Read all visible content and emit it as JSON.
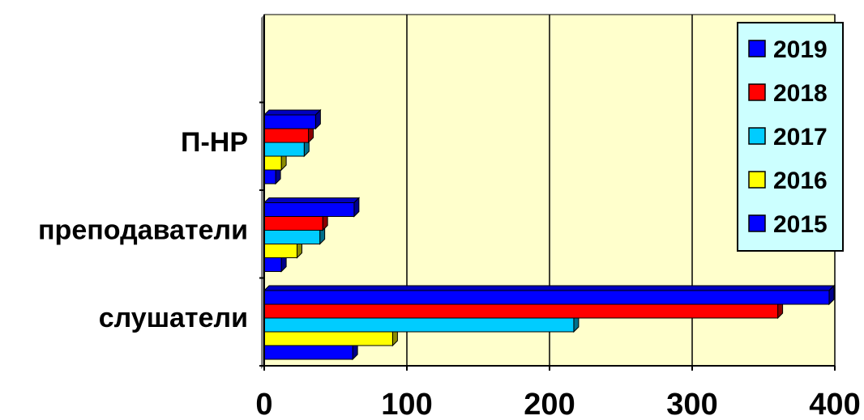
{
  "chart_data": {
    "type": "bar",
    "orientation": "horizontal",
    "title": "",
    "xlabel": "",
    "ylabel": "",
    "categories": [
      "слушатели",
      "преподаватели",
      "П-НР"
    ],
    "x_ticks": [
      "0",
      "100",
      "200",
      "300",
      "400"
    ],
    "xlim": [
      0,
      400
    ],
    "grid": "vertical",
    "legend_position": "right-top",
    "series": [
      {
        "name": "2015",
        "color": "#0000FF",
        "values": [
          62,
          12,
          8
        ]
      },
      {
        "name": "2016",
        "color": "#FFFF00",
        "values": [
          90,
          23,
          12
        ]
      },
      {
        "name": "2017",
        "color": "#00CCFF",
        "values": [
          217,
          39,
          28
        ]
      },
      {
        "name": "2018",
        "color": "#FF0000",
        "values": [
          360,
          41,
          31
        ]
      },
      {
        "name": "2019",
        "color": "#0000FF",
        "values": [
          396,
          63,
          36
        ]
      }
    ],
    "legend_order": [
      "2019",
      "2018",
      "2017",
      "2016",
      "2015"
    ],
    "colors": {
      "plot_background": "#FFFFCC",
      "legend_background": "#CCFFFF",
      "gridline": "#000000"
    }
  }
}
